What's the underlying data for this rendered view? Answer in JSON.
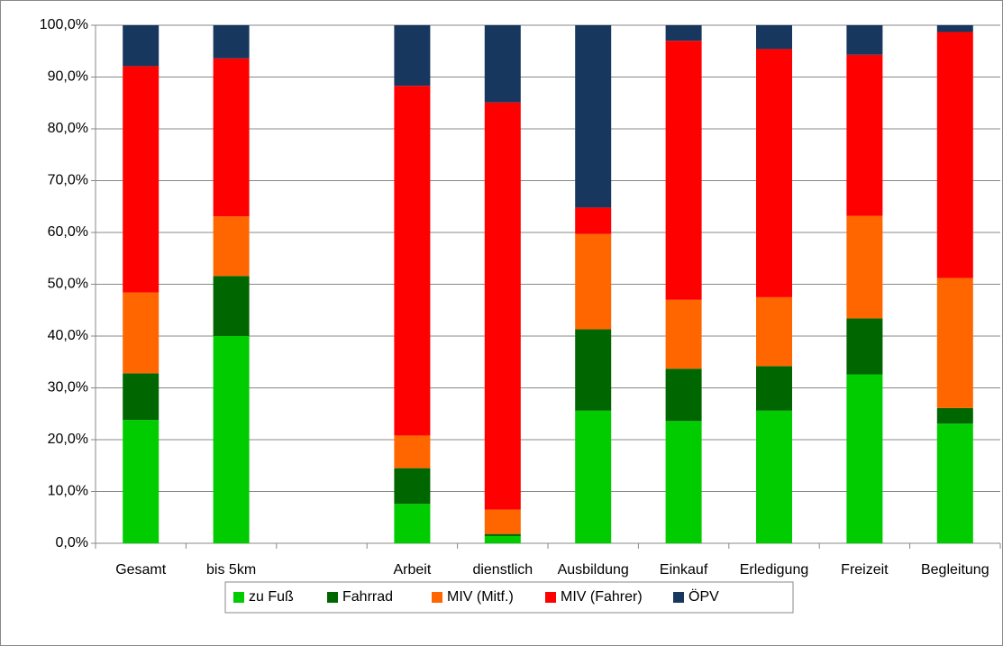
{
  "chart_data": {
    "type": "stacked_bar",
    "categories": [
      "Gesamt",
      "bis 5km",
      null,
      "Arbeit",
      "dienstlich",
      "Ausbildung",
      "Einkauf",
      "Erledigung",
      "Freizeit",
      "Begleitung"
    ],
    "series": [
      {
        "name": "zu Fuß",
        "color": "#00cc00",
        "values": [
          23.8,
          40.0,
          null,
          7.6,
          1.4,
          25.6,
          23.6,
          25.6,
          32.6,
          23.1
        ]
      },
      {
        "name": "Fahrrad",
        "color": "#006600",
        "values": [
          9.0,
          11.6,
          null,
          6.9,
          0.4,
          15.7,
          10.1,
          8.6,
          10.8,
          3.0
        ]
      },
      {
        "name": "MIV (Mitf.)",
        "color": "#ff6600",
        "values": [
          15.6,
          11.5,
          null,
          6.3,
          4.7,
          18.4,
          13.3,
          13.3,
          19.8,
          25.1
        ]
      },
      {
        "name": "MIV (Fahrer)",
        "color": "#ff0000",
        "values": [
          43.7,
          30.5,
          null,
          67.5,
          78.6,
          5.1,
          50.0,
          47.9,
          31.1,
          47.5
        ]
      },
      {
        "name": "ÖPV",
        "color": "#17375e",
        "values": [
          7.9,
          6.4,
          null,
          11.7,
          14.9,
          35.2,
          3.0,
          4.6,
          5.7,
          1.3
        ]
      }
    ],
    "ylim": [
      0,
      100
    ],
    "yticks": [
      {
        "value": 0,
        "label": "0,0%"
      },
      {
        "value": 10,
        "label": "10,0%"
      },
      {
        "value": 20,
        "label": "20,0%"
      },
      {
        "value": 30,
        "label": "30,0%"
      },
      {
        "value": 40,
        "label": "40,0%"
      },
      {
        "value": 50,
        "label": "50,0%"
      },
      {
        "value": 60,
        "label": "60,0%"
      },
      {
        "value": 70,
        "label": "70,0%"
      },
      {
        "value": 80,
        "label": "80,0%"
      },
      {
        "value": 90,
        "label": "90,0%"
      },
      {
        "value": 100,
        "label": "100,0%"
      }
    ],
    "grid": true,
    "legend": "bottom"
  }
}
